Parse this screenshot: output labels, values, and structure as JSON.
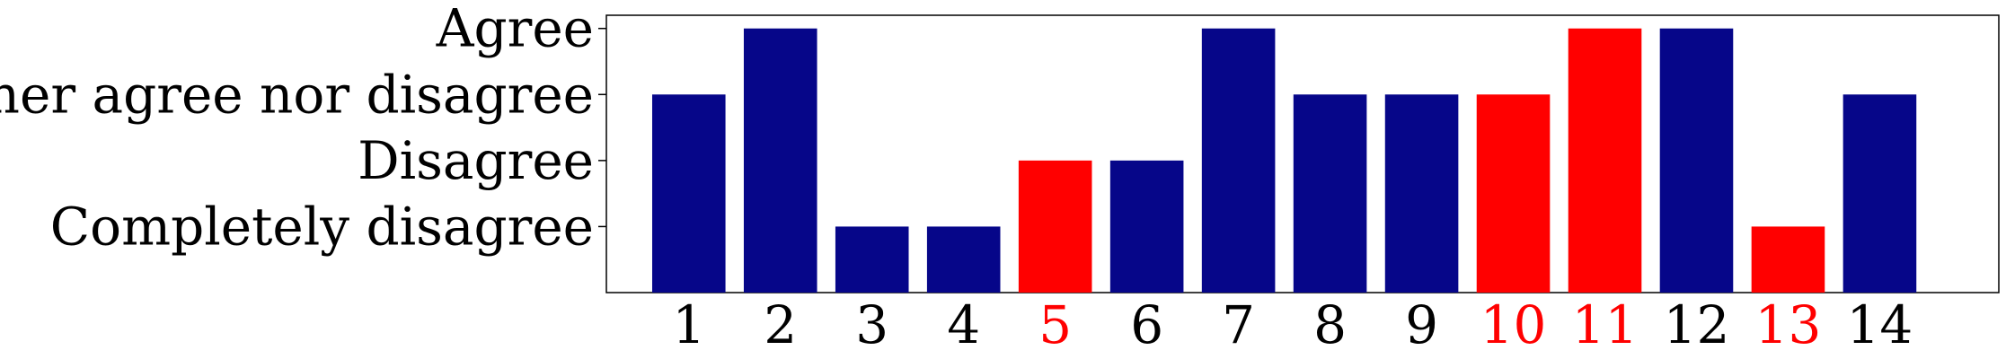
{
  "chart_data": {
    "type": "bar",
    "categories": [
      "1",
      "2",
      "3",
      "4",
      "5",
      "6",
      "7",
      "8",
      "9",
      "10",
      "11",
      "12",
      "13",
      "14"
    ],
    "values": [
      3,
      4,
      1,
      1,
      2,
      2,
      4,
      3,
      3,
      3,
      4,
      4,
      1,
      3
    ],
    "highlighted": [
      "5",
      "10",
      "11",
      "13"
    ],
    "ytick_values": [
      1,
      2,
      3,
      4
    ],
    "ytick_labels": [
      "Completely disagree",
      "Disagree",
      "Neither agree nor disagree",
      "Agree"
    ],
    "ylim": [
      0,
      4.2
    ],
    "xlim": [
      0.1,
      15.3
    ],
    "title": "",
    "xlabel": "",
    "ylabel": "",
    "grid": false,
    "colors": {
      "default": "#060689",
      "highlight": "#ff0000",
      "tick_text": "#000000",
      "axis": "#000000"
    }
  }
}
